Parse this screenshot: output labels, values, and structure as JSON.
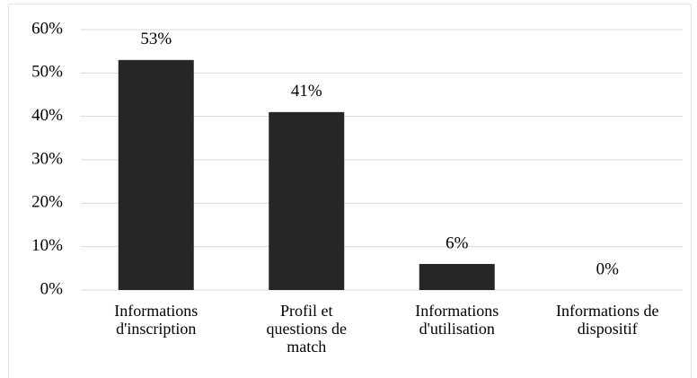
{
  "chart_data": {
    "type": "bar",
    "categories": [
      "Informations\nd'inscription",
      "Profil et\nquestions de\nmatch",
      "Informations\nd'utilisation",
      "Informations de\ndispositif"
    ],
    "values": [
      53,
      41,
      6,
      0
    ],
    "value_labels": [
      "53%",
      "41%",
      "6%",
      "0%"
    ],
    "color": "#262626",
    "ylim": [
      0,
      60
    ],
    "yticks": [
      {
        "value": 0,
        "label": "0%"
      },
      {
        "value": 10,
        "label": "10%"
      },
      {
        "value": 20,
        "label": "20%"
      },
      {
        "value": 30,
        "label": "30%"
      },
      {
        "value": 40,
        "label": "40%"
      },
      {
        "value": 50,
        "label": "50%"
      },
      {
        "value": 60,
        "label": "60%"
      }
    ],
    "grid": true
  }
}
